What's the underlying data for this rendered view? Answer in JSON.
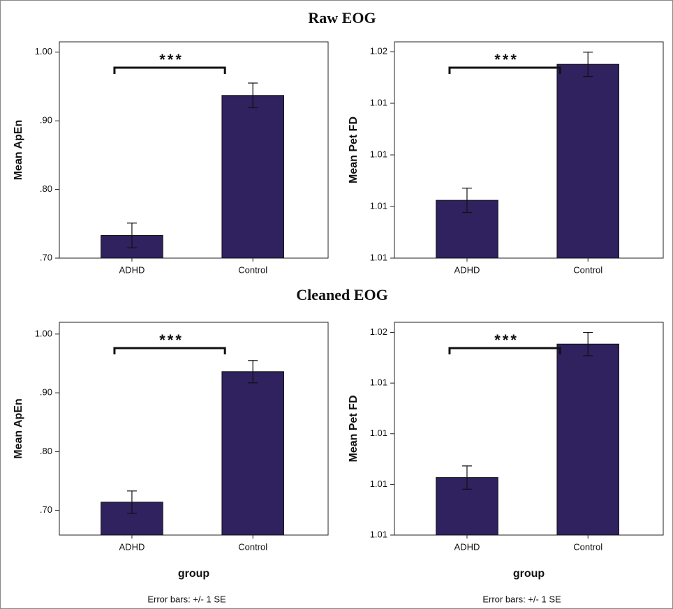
{
  "sections": [
    {
      "title": "Raw EOG"
    },
    {
      "title": "Cleaned EOG"
    }
  ],
  "chart_data": [
    {
      "type": "bar",
      "ylabel": "Mean ApEn",
      "annotation": "***",
      "color": "#30215f",
      "categories": [
        "ADHD",
        "Control"
      ],
      "values": [
        0.733,
        0.937
      ],
      "errors": [
        0.018,
        0.018
      ],
      "ylim": [
        0.7,
        1.015
      ],
      "yticks": [
        {
          "value": 0.7,
          "label": ".70"
        },
        {
          "value": 0.8,
          "label": ".80"
        },
        {
          "value": 0.9,
          "label": ".90"
        },
        {
          "value": 1.0,
          "label": "1.00"
        }
      ]
    },
    {
      "type": "bar",
      "ylabel": "Mean Pet FD",
      "annotation": "***",
      "color": "#30215f",
      "categories": [
        "ADHD",
        "Control"
      ],
      "values": [
        1.01024,
        1.01551
      ],
      "errors": [
        0.00047,
        0.00047
      ],
      "ylim": [
        1.008,
        1.01638
      ],
      "yticks": [
        {
          "value": 1.008,
          "label": "1.01"
        },
        {
          "value": 1.01,
          "label": "1.01"
        },
        {
          "value": 1.012,
          "label": "1.01"
        },
        {
          "value": 1.014,
          "label": "1.01"
        },
        {
          "value": 1.016,
          "label": "1.02"
        }
      ]
    },
    {
      "type": "bar",
      "ylabel": "Mean ApEn",
      "xlabel": "group",
      "annotation": "***",
      "note": "Error bars: +/- 1 SE",
      "color": "#30215f",
      "categories": [
        "ADHD",
        "Control"
      ],
      "values": [
        0.714,
        0.936
      ],
      "errors": [
        0.019,
        0.019
      ],
      "ylim": [
        0.658,
        1.02
      ],
      "yticks": [
        {
          "value": 0.7,
          "label": ".70"
        },
        {
          "value": 0.8,
          "label": ".80"
        },
        {
          "value": 0.9,
          "label": ".90"
        },
        {
          "value": 1.0,
          "label": "1.00"
        }
      ]
    },
    {
      "type": "bar",
      "ylabel": "Mean Pet FD",
      "xlabel": "group",
      "annotation": "***",
      "note": "Error bars: +/- 1 SE",
      "color": "#30215f",
      "categories": [
        "ADHD",
        "Control"
      ],
      "values": [
        1.01027,
        1.01554
      ],
      "errors": [
        0.00046,
        0.00046
      ],
      "ylim": [
        1.008,
        1.0164
      ],
      "yticks": [
        {
          "value": 1.008,
          "label": "1.01"
        },
        {
          "value": 1.01,
          "label": "1.01"
        },
        {
          "value": 1.012,
          "label": "1.01"
        },
        {
          "value": 1.014,
          "label": "1.01"
        },
        {
          "value": 1.016,
          "label": "1.02"
        }
      ]
    }
  ]
}
